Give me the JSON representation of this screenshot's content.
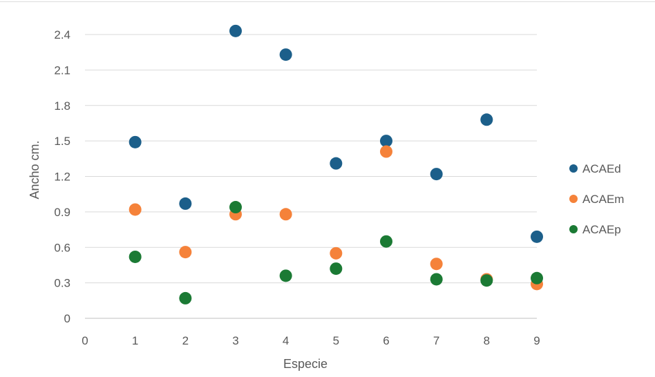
{
  "chart_data": {
    "type": "scatter",
    "title": "",
    "xlabel": "Especie",
    "ylabel": "Ancho cm.",
    "xlim": [
      0,
      9
    ],
    "ylim": [
      0,
      2.4
    ],
    "x_ticks": [
      "0",
      "1",
      "2",
      "3",
      "4",
      "5",
      "6",
      "7",
      "8",
      "9"
    ],
    "y_ticks": [
      "0",
      "0.3",
      "0.6",
      "0.9",
      "1.2",
      "1.5",
      "1.8",
      "2.1",
      "2.4"
    ],
    "grid": true,
    "legend_position": "right",
    "series": [
      {
        "name": "ACAEd",
        "color": "#1c5f8a",
        "x": [
          1,
          2,
          3,
          4,
          5,
          6,
          7,
          8,
          9
        ],
        "y": [
          1.49,
          0.97,
          2.43,
          2.23,
          1.31,
          1.5,
          1.22,
          1.68,
          0.69
        ]
      },
      {
        "name": "ACAEm",
        "color": "#f5823a",
        "x": [
          1,
          2,
          3,
          4,
          5,
          6,
          7,
          8,
          9
        ],
        "y": [
          0.92,
          0.56,
          0.88,
          0.88,
          0.55,
          1.41,
          0.46,
          0.33,
          0.29
        ]
      },
      {
        "name": "ACAEp",
        "color": "#1b7a34",
        "x": [
          1,
          2,
          3,
          4,
          5,
          6,
          7,
          8,
          9
        ],
        "y": [
          0.52,
          0.17,
          0.94,
          0.36,
          0.42,
          0.65,
          0.33,
          0.32,
          0.34
        ]
      }
    ]
  }
}
